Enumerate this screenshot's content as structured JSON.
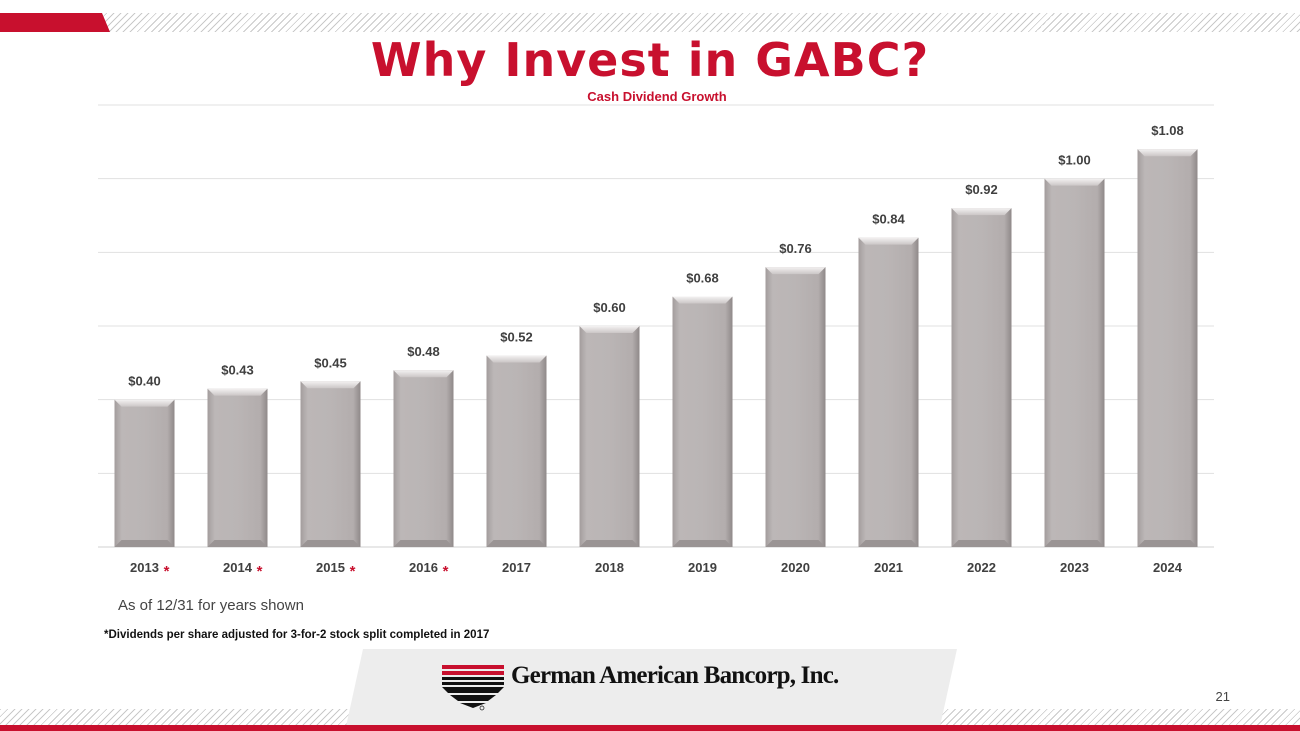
{
  "header": {
    "title": "Why Invest in GABC?"
  },
  "chart_data": {
    "type": "bar",
    "title": "Cash Dividend Growth",
    "categories": [
      "2013",
      "2014",
      "2015",
      "2016",
      "2017",
      "2018",
      "2019",
      "2020",
      "2021",
      "2022",
      "2023",
      "2024"
    ],
    "values": [
      0.4,
      0.43,
      0.45,
      0.48,
      0.52,
      0.6,
      0.68,
      0.76,
      0.84,
      0.92,
      1.0,
      1.08
    ],
    "value_labels": [
      "$0.40",
      "$0.43",
      "$0.45",
      "$0.48",
      "$0.52",
      "$0.60",
      "$0.68",
      "$0.76",
      "$0.84",
      "$0.92",
      "$1.00",
      "$1.08"
    ],
    "adjusted_marker": "*",
    "adjusted_categories": [
      "2013",
      "2014",
      "2015",
      "2016"
    ],
    "ylim": [
      0,
      1.2
    ],
    "grid": true,
    "bar_color": "#b8b3b3"
  },
  "notes": {
    "as_of": "As of 12/31 for years shown",
    "split": "*Dividends per share adjusted for 3-for-2 stock split completed in 2017"
  },
  "footer": {
    "company": "German American Bancorp, Inc.",
    "page_number": "21"
  },
  "colors": {
    "accent": "#c8102e",
    "text": "#404040"
  }
}
